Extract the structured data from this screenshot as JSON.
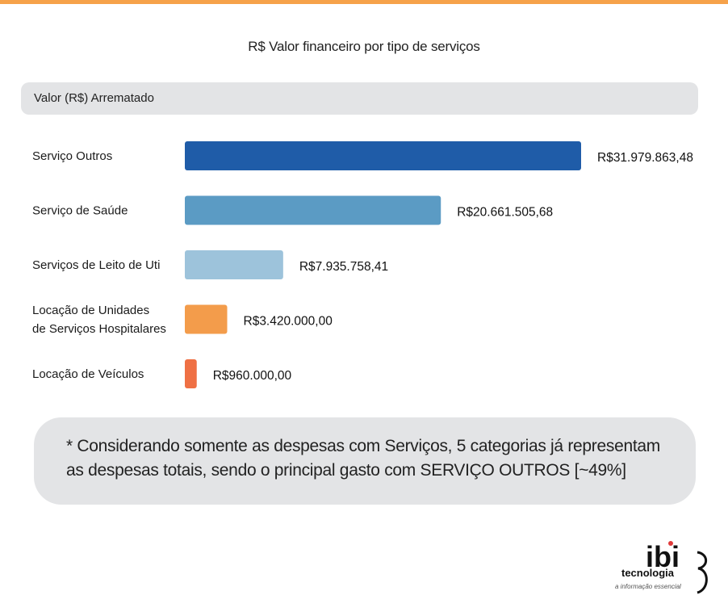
{
  "accent_color": "#f6a24a",
  "chart_data": {
    "type": "bar",
    "orientation": "horizontal",
    "title": "R$ Valor financeiro por tipo de serviços",
    "series_header": "Valor (R$) Arrematado",
    "categories": [
      [
        "Serviço Outros"
      ],
      [
        "Serviço de Saúde"
      ],
      [
        "Serviços de Leito de Uti"
      ],
      [
        "Locação de Unidades",
        "de Serviços Hospitalares"
      ],
      [
        "Locação de Veículos"
      ]
    ],
    "values": [
      31979863.48,
      20661505.68,
      7935758.41,
      3420000.0,
      960000.0
    ],
    "value_labels": [
      "R$31.979.863,48",
      "R$20.661.505,68",
      "R$7.935.758,41",
      "R$3.420.000,00",
      "R$960.000,00"
    ],
    "colors": [
      "#1f5ca8",
      "#5b9bc4",
      "#9dc3db",
      "#f39c4b",
      "#ef7044"
    ],
    "grid": false,
    "legend": "none"
  },
  "note": {
    "text": "* Considerando somente as despesas com Serviços, 5 categorias já representam as despesas totais, sendo o principal gasto com SERVIÇO OUTROS [~49%]"
  },
  "logo": {
    "brand": "ibi",
    "name": "tecnologia",
    "tagline": "a informação essencial"
  }
}
